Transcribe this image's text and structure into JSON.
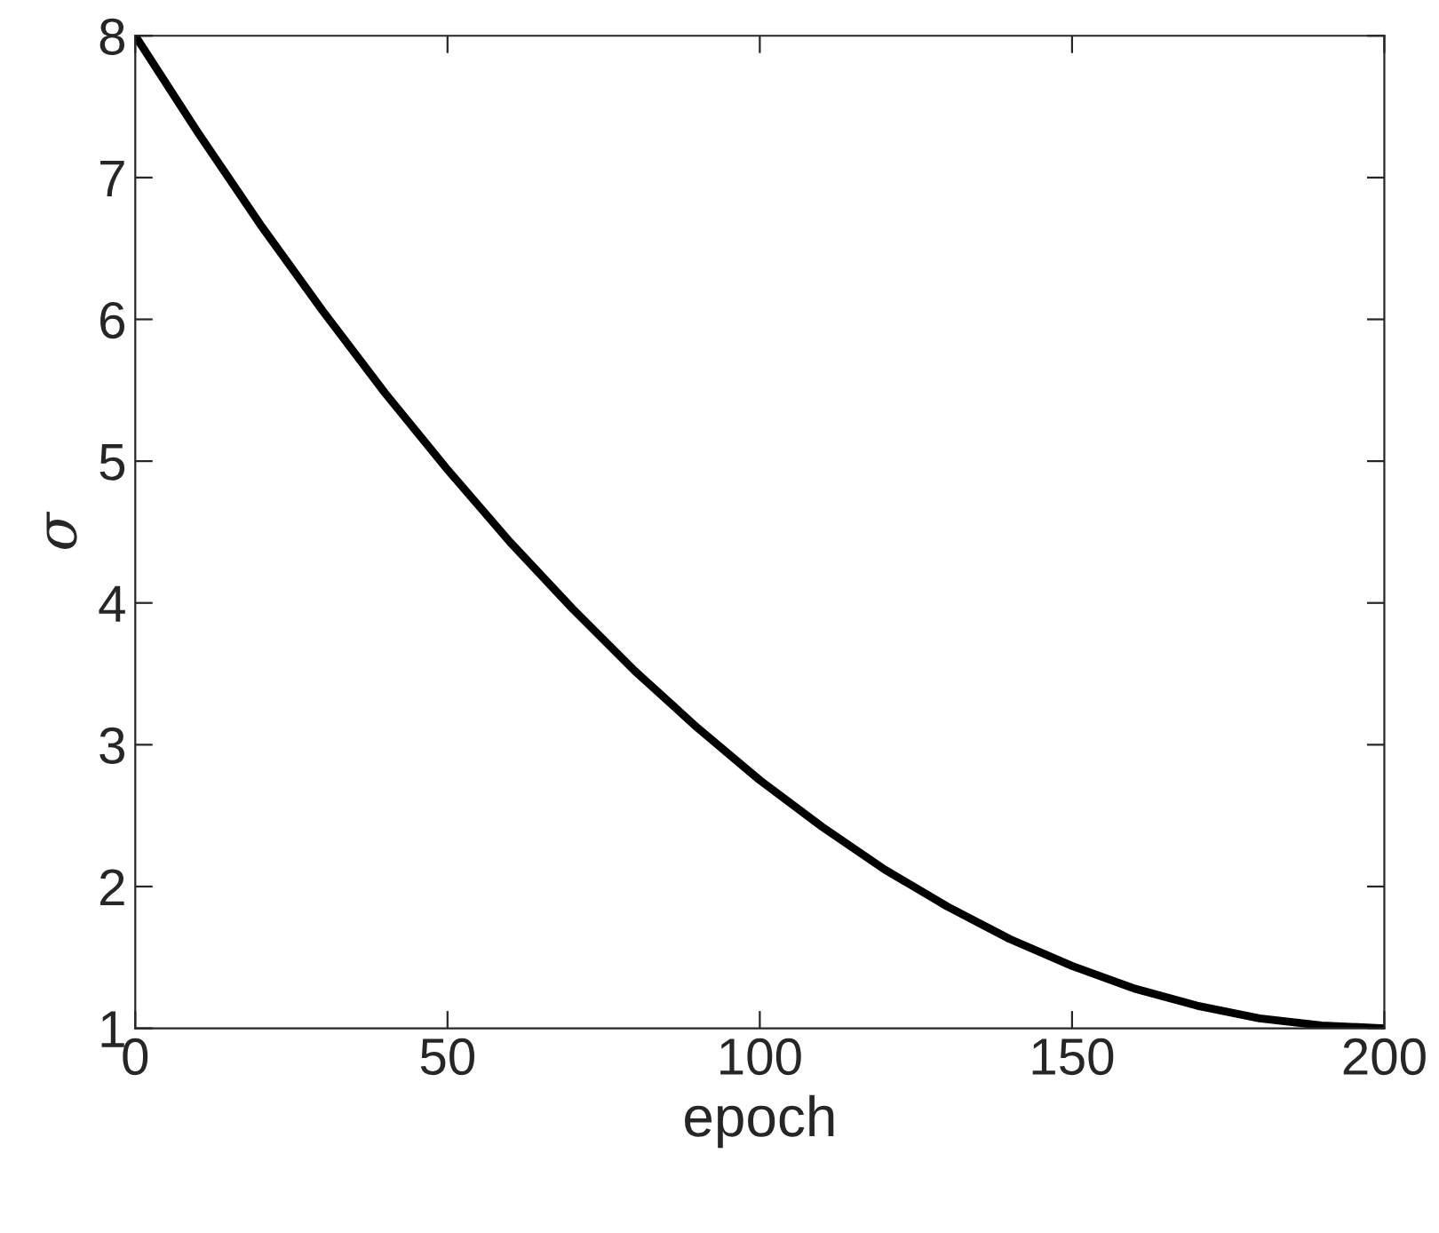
{
  "chart_data": {
    "type": "line",
    "xlabel": "epoch",
    "ylabel": "σ",
    "x": [
      0,
      10,
      20,
      30,
      40,
      50,
      60,
      70,
      80,
      90,
      100,
      110,
      120,
      130,
      140,
      150,
      160,
      170,
      180,
      190,
      200
    ],
    "series": [
      {
        "color": "#000000",
        "values": [
          8.0,
          7.32,
          6.67,
          6.06,
          5.48,
          4.94,
          4.43,
          3.96,
          3.52,
          3.12,
          2.75,
          2.42,
          2.12,
          1.86,
          1.63,
          1.44,
          1.28,
          1.16,
          1.07,
          1.02,
          1.0
        ]
      }
    ],
    "xlim": [
      0,
      200
    ],
    "xticks": [
      0,
      50,
      100,
      150,
      200
    ],
    "ylim": [
      1,
      8
    ],
    "yticks": [
      1,
      2,
      3,
      4,
      5,
      6,
      7,
      8
    ],
    "grid": false,
    "legend": false,
    "marker": "none",
    "line_style": "solid"
  }
}
